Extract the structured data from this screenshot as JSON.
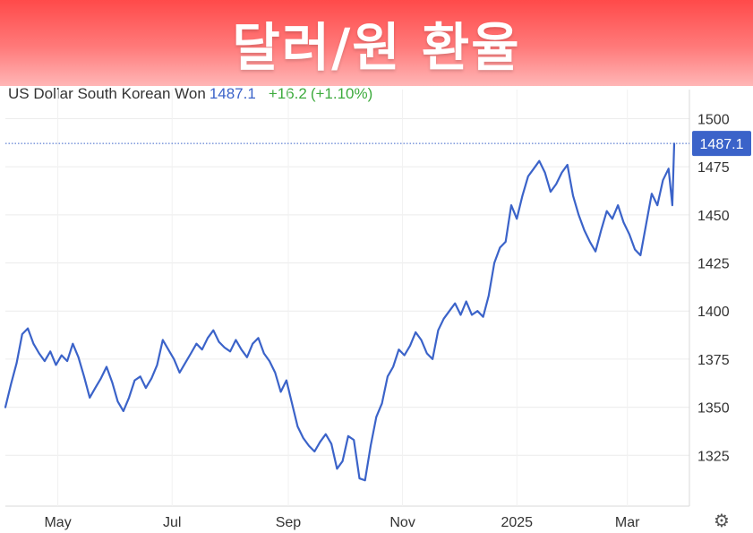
{
  "banner": {
    "title": "달러/원 환율"
  },
  "legend": {
    "symbol": "US Dollar South Korean Won",
    "price": "1487.1",
    "change": "+16.2",
    "change_pct": "(+1.10%)"
  },
  "settings": {
    "icon": "gear-icon"
  },
  "colors": {
    "line": "#3b63c9",
    "badge": "#3b63c9",
    "up": "#3dab3d",
    "banner": "#ff5a5a"
  },
  "chart_data": {
    "type": "line",
    "title": "",
    "series_name": "US Dollar South Korean Won",
    "current_value": 1487.1,
    "current_label": "1487.1",
    "ylim": [
      1300,
      1510
    ],
    "y_ticks": [
      1325,
      1350,
      1375,
      1400,
      1425,
      1450,
      1475,
      1500
    ],
    "y_tick_labels": [
      "1325",
      "1350",
      "1375",
      "1400",
      "1425",
      "1450",
      "1475",
      "1500"
    ],
    "x_range": [
      "2024-04-03",
      "2025-03-26"
    ],
    "x_ticks": [
      {
        "date": "2024-05-01",
        "label": "May"
      },
      {
        "date": "2024-07-01",
        "label": "Jul"
      },
      {
        "date": "2024-09-01",
        "label": "Sep"
      },
      {
        "date": "2024-11-01",
        "label": "Nov"
      },
      {
        "date": "2025-01-01",
        "label": "2025"
      },
      {
        "date": "2025-03-01",
        "label": "Mar"
      }
    ],
    "grid": true,
    "points": [
      [
        "2024-04-03",
        1350
      ],
      [
        "2024-04-06",
        1362
      ],
      [
        "2024-04-09",
        1373
      ],
      [
        "2024-04-12",
        1388
      ],
      [
        "2024-04-15",
        1391
      ],
      [
        "2024-04-18",
        1383
      ],
      [
        "2024-04-21",
        1378
      ],
      [
        "2024-04-24",
        1374
      ],
      [
        "2024-04-27",
        1379
      ],
      [
        "2024-04-30",
        1372
      ],
      [
        "2024-05-03",
        1377
      ],
      [
        "2024-05-06",
        1374
      ],
      [
        "2024-05-09",
        1383
      ],
      [
        "2024-05-12",
        1376
      ],
      [
        "2024-05-15",
        1366
      ],
      [
        "2024-05-18",
        1355
      ],
      [
        "2024-05-21",
        1360
      ],
      [
        "2024-05-24",
        1365
      ],
      [
        "2024-05-27",
        1371
      ],
      [
        "2024-05-30",
        1363
      ],
      [
        "2024-06-02",
        1353
      ],
      [
        "2024-06-05",
        1348
      ],
      [
        "2024-06-08",
        1355
      ],
      [
        "2024-06-11",
        1364
      ],
      [
        "2024-06-14",
        1366
      ],
      [
        "2024-06-17",
        1360
      ],
      [
        "2024-06-20",
        1365
      ],
      [
        "2024-06-23",
        1372
      ],
      [
        "2024-06-26",
        1385
      ],
      [
        "2024-06-29",
        1380
      ],
      [
        "2024-07-02",
        1375
      ],
      [
        "2024-07-05",
        1368
      ],
      [
        "2024-07-08",
        1373
      ],
      [
        "2024-07-11",
        1378
      ],
      [
        "2024-07-14",
        1383
      ],
      [
        "2024-07-17",
        1380
      ],
      [
        "2024-07-20",
        1386
      ],
      [
        "2024-07-23",
        1390
      ],
      [
        "2024-07-26",
        1384
      ],
      [
        "2024-07-29",
        1381
      ],
      [
        "2024-08-01",
        1379
      ],
      [
        "2024-08-04",
        1385
      ],
      [
        "2024-08-07",
        1380
      ],
      [
        "2024-08-10",
        1376
      ],
      [
        "2024-08-13",
        1383
      ],
      [
        "2024-08-16",
        1386
      ],
      [
        "2024-08-19",
        1378
      ],
      [
        "2024-08-22",
        1374
      ],
      [
        "2024-08-25",
        1368
      ],
      [
        "2024-08-28",
        1358
      ],
      [
        "2024-08-31",
        1364
      ],
      [
        "2024-09-03",
        1352
      ],
      [
        "2024-09-06",
        1340
      ],
      [
        "2024-09-09",
        1334
      ],
      [
        "2024-09-12",
        1330
      ],
      [
        "2024-09-15",
        1327
      ],
      [
        "2024-09-18",
        1332
      ],
      [
        "2024-09-21",
        1336
      ],
      [
        "2024-09-24",
        1331
      ],
      [
        "2024-09-27",
        1318
      ],
      [
        "2024-09-30",
        1322
      ],
      [
        "2024-10-03",
        1335
      ],
      [
        "2024-10-06",
        1333
      ],
      [
        "2024-10-09",
        1313
      ],
      [
        "2024-10-12",
        1312
      ],
      [
        "2024-10-15",
        1330
      ],
      [
        "2024-10-18",
        1345
      ],
      [
        "2024-10-21",
        1352
      ],
      [
        "2024-10-24",
        1366
      ],
      [
        "2024-10-27",
        1371
      ],
      [
        "2024-10-30",
        1380
      ],
      [
        "2024-11-02",
        1377
      ],
      [
        "2024-11-05",
        1382
      ],
      [
        "2024-11-08",
        1389
      ],
      [
        "2024-11-11",
        1385
      ],
      [
        "2024-11-14",
        1378
      ],
      [
        "2024-11-17",
        1375
      ],
      [
        "2024-11-20",
        1390
      ],
      [
        "2024-11-23",
        1396
      ],
      [
        "2024-11-26",
        1400
      ],
      [
        "2024-11-29",
        1404
      ],
      [
        "2024-12-02",
        1398
      ],
      [
        "2024-12-05",
        1405
      ],
      [
        "2024-12-08",
        1398
      ],
      [
        "2024-12-11",
        1400
      ],
      [
        "2024-12-14",
        1397
      ],
      [
        "2024-12-17",
        1408
      ],
      [
        "2024-12-20",
        1425
      ],
      [
        "2024-12-23",
        1433
      ],
      [
        "2024-12-26",
        1436
      ],
      [
        "2024-12-29",
        1455
      ],
      [
        "2025-01-01",
        1448
      ],
      [
        "2025-01-04",
        1460
      ],
      [
        "2025-01-07",
        1470
      ],
      [
        "2025-01-10",
        1474
      ],
      [
        "2025-01-13",
        1478
      ],
      [
        "2025-01-16",
        1472
      ],
      [
        "2025-01-19",
        1462
      ],
      [
        "2025-01-22",
        1466
      ],
      [
        "2025-01-25",
        1472
      ],
      [
        "2025-01-28",
        1476
      ],
      [
        "2025-01-31",
        1460
      ],
      [
        "2025-02-03",
        1450
      ],
      [
        "2025-02-06",
        1442
      ],
      [
        "2025-02-09",
        1436
      ],
      [
        "2025-02-12",
        1431
      ],
      [
        "2025-02-15",
        1442
      ],
      [
        "2025-02-18",
        1452
      ],
      [
        "2025-02-21",
        1448
      ],
      [
        "2025-02-24",
        1455
      ],
      [
        "2025-02-27",
        1446
      ],
      [
        "2025-03-02",
        1440
      ],
      [
        "2025-03-05",
        1432
      ],
      [
        "2025-03-08",
        1429
      ],
      [
        "2025-03-11",
        1445
      ],
      [
        "2025-03-14",
        1461
      ],
      [
        "2025-03-17",
        1455
      ],
      [
        "2025-03-20",
        1468
      ],
      [
        "2025-03-23",
        1474
      ],
      [
        "2025-03-25",
        1455
      ],
      [
        "2025-03-26",
        1487
      ]
    ]
  }
}
